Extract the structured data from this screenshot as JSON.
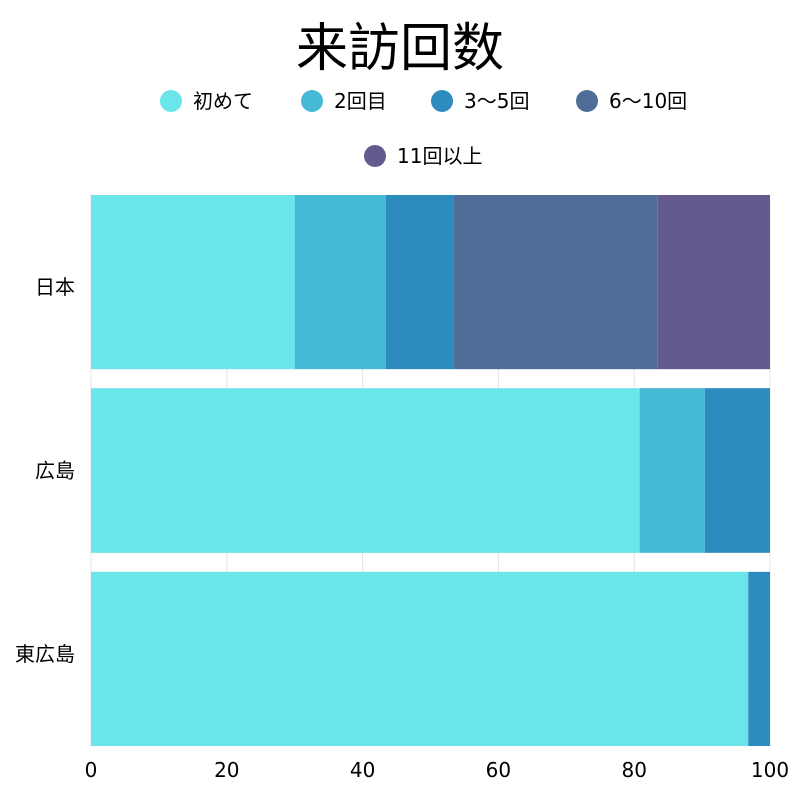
{
  "chart_data": {
    "type": "bar",
    "orientation": "horizontal",
    "stacked": true,
    "title": "来訪回数",
    "categories": [
      "日本",
      "広島",
      "東広島"
    ],
    "series": [
      {
        "name": "初めて",
        "color": "#6ae5ea",
        "values": [
          30,
          80.8,
          96.8
        ]
      },
      {
        "name": "2回目",
        "color": "#45b8d6",
        "values": [
          13.4,
          9.6,
          0
        ]
      },
      {
        "name": "3〜5回",
        "color": "#2e8bbd",
        "values": [
          10,
          9.6,
          3.2
        ]
      },
      {
        "name": "6〜10回",
        "color": "#4e6e98",
        "values": [
          30,
          0,
          0
        ]
      },
      {
        "name": "11回以上",
        "color": "#645a8f",
        "values": [
          16.6,
          0,
          0
        ]
      }
    ],
    "xlim": [
      0,
      100
    ],
    "xticks": [
      0,
      20,
      40,
      60,
      80,
      100
    ],
    "grid": true,
    "legend_position": "top"
  }
}
